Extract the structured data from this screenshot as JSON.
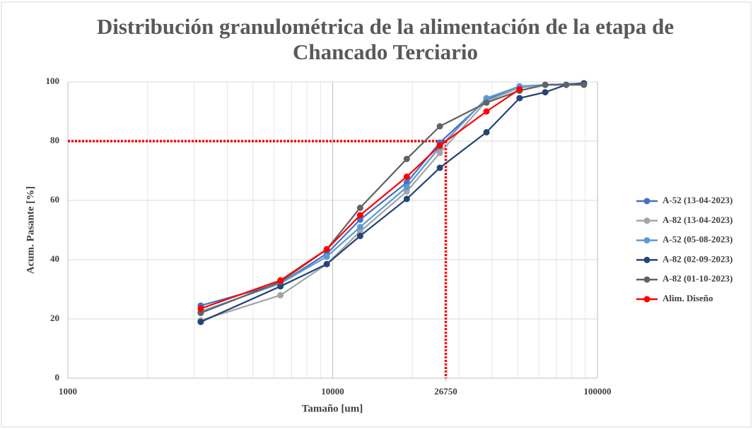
{
  "chart_data": {
    "type": "line",
    "title": "Distribución granulométrica de la alimentación de la etapa de Chancado Terciario",
    "x_label": "Tamaño [um]",
    "y_label": "Acum. Pasante [%]",
    "xscale": "log",
    "xlim": [
      1000,
      100000
    ],
    "xticks": [
      1000,
      10000,
      26750,
      100000
    ],
    "ylim": [
      0,
      100
    ],
    "yticks": [
      0,
      20,
      40,
      60,
      80,
      100
    ],
    "grid": true,
    "minor_grid": true,
    "legend": "right",
    "reference": {
      "x": 26750,
      "y": 80,
      "color": "#ff0000"
    },
    "series": [
      {
        "name": "A-52 (13-04-2023)",
        "color": "#4472c4",
        "x": [
          3175,
          6350,
          9500,
          12700,
          19050,
          25400,
          38100,
          50800,
          63500,
          88900
        ],
        "values": [
          24.5,
          32,
          42,
          53.5,
          66,
          79.5,
          94,
          98,
          99,
          99.5
        ]
      },
      {
        "name": "A-82 (13-04-2023)",
        "color": "#a5a5a5",
        "x": [
          3175,
          6350,
          9500,
          12700,
          19050,
          25400,
          38100,
          50800,
          63500,
          88900
        ],
        "values": [
          19.5,
          28,
          38.5,
          49.5,
          63,
          76,
          93.5,
          98,
          99,
          99.5
        ]
      },
      {
        "name": "A-52 (05-08-2023)",
        "color": "#5b9bd5",
        "x": [
          3175,
          6350,
          9500,
          12700,
          19050,
          25400,
          38100,
          50800,
          63500,
          88900
        ],
        "values": [
          22.5,
          32,
          41,
          51,
          64.5,
          78,
          94.5,
          98.5,
          99,
          99.5
        ]
      },
      {
        "name": "A-82 (02-09-2023)",
        "color": "#264478",
        "x": [
          3175,
          6350,
          9500,
          12700,
          19050,
          25400,
          38100,
          50800,
          63500,
          76200,
          88900
        ],
        "values": [
          19,
          31,
          38.5,
          48,
          60.5,
          71,
          83,
          94.5,
          96.5,
          99,
          99.5
        ]
      },
      {
        "name": "A-82 (01-10-2023)",
        "color": "#636363",
        "x": [
          3175,
          6350,
          9500,
          12700,
          19050,
          25400,
          38100,
          50800,
          63500,
          76200,
          88900
        ],
        "values": [
          22,
          32.5,
          43.5,
          57.5,
          74,
          85,
          93,
          97,
          99,
          99,
          99
        ]
      },
      {
        "name": "Alim. Diseño",
        "color": "#ff0000",
        "x": [
          3175,
          6350,
          9500,
          12700,
          19050,
          25400,
          38100,
          50800
        ],
        "values": [
          23.5,
          33,
          43.5,
          55,
          68,
          78.5,
          90,
          97.5
        ]
      }
    ]
  }
}
